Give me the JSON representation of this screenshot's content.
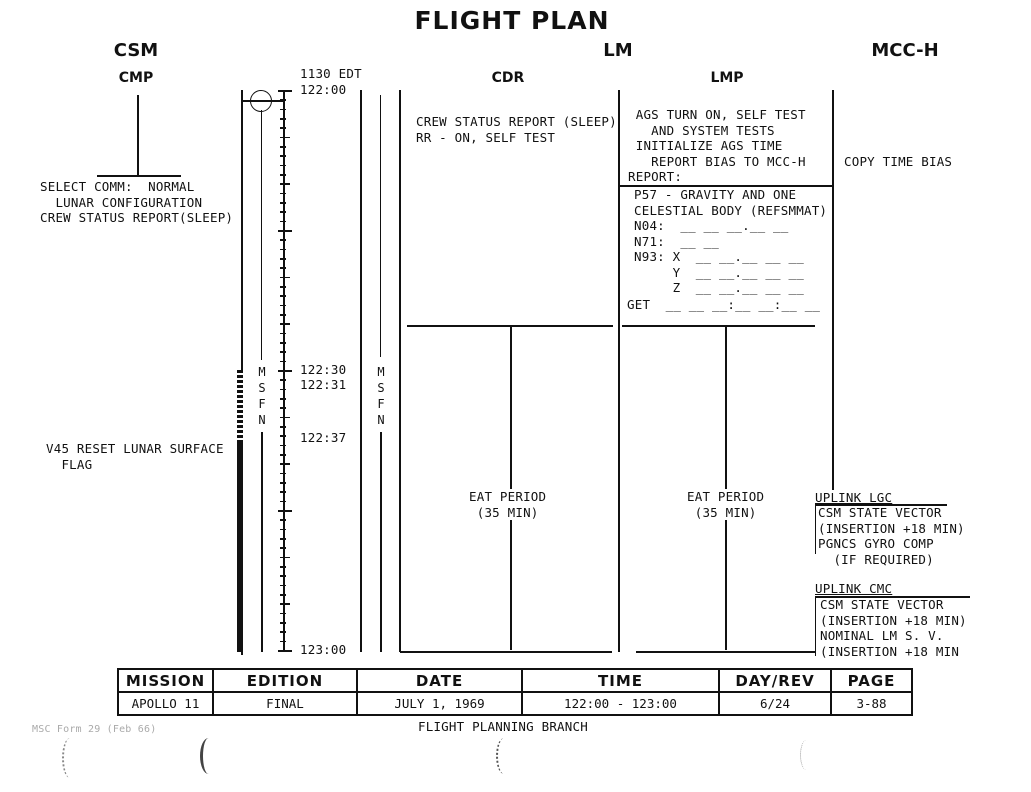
{
  "title": "FLIGHT PLAN",
  "sections": {
    "csm": "CSM",
    "lm": "LM",
    "mcc": "MCC-H"
  },
  "columns": {
    "cmp": "CMP",
    "cdr": "CDR",
    "lmp": "LMP"
  },
  "timeline": {
    "edt": "1130 EDT",
    "labels": [
      "122:00",
      "122:30",
      "122:31",
      "122:37",
      "123:00"
    ],
    "station": "M\nS\nF\nN"
  },
  "cmp": {
    "select_comm": "SELECT COMM:  NORMAL\n  LUNAR CONFIGURATION\nCREW STATUS REPORT(SLEEP)",
    "v45": "V45 RESET LUNAR SURFACE\n  FLAG"
  },
  "cdr": {
    "status": "CREW STATUS REPORT (SLEEP)\nRR - ON, SELF TEST",
    "eat": "EAT PERIOD\n(35 MIN)"
  },
  "lmp": {
    "ags": " AGS TURN ON, SELF TEST\n   AND SYSTEM TESTS\n INITIALIZE AGS TIME\n   REPORT BIAS TO MCC-H\nREPORT:",
    "p57": "P57 - GRAVITY AND ONE\nCELESTIAL BODY (REFSMMAT)\nN04:  __ __ __.__ __\nN71:  __ __\nN93: X  __ __.__ __ __\n     Y  __ __.__ __ __\n     Z  __ __.__ __ __",
    "get": "GET  __ __ __:__ __:__ __",
    "eat": "EAT PERIOD\n(35 MIN)"
  },
  "mcc": {
    "copy_bias": "COPY TIME BIAS",
    "uplink_lgc": "UPLINK LGC",
    "lgc_items": "CSM STATE VECTOR\n(INSERTION +18 MIN)\nPGNCS GYRO COMP\n  (IF REQUIRED)",
    "uplink_cmc": "UPLINK CMC",
    "cmc_items": "CSM STATE VECTOR\n(INSERTION +18 MIN)\nNOMINAL LM S. V.\n(INSERTION +18 MIN"
  },
  "footer": {
    "headers": [
      "MISSION",
      "EDITION",
      "DATE",
      "TIME",
      "DAY/REV",
      "PAGE"
    ],
    "values": [
      "APOLLO 11",
      "FINAL",
      "JULY 1, 1969",
      "122:00 - 123:00",
      "6/24",
      "3-88"
    ],
    "branch": "FLIGHT PLANNING BRANCH",
    "form": "MSC Form 29 (Feb 66)"
  }
}
